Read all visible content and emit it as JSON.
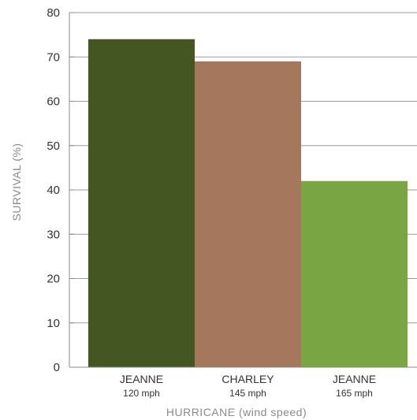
{
  "chart_data": {
    "type": "bar",
    "categories": [
      "JEANNE",
      "CHARLEY",
      "JEANNE"
    ],
    "category_sublabels": [
      "120 mph",
      "145 mph",
      "165 mph"
    ],
    "values": [
      74,
      69,
      42
    ],
    "colors": [
      "#445723",
      "#a5785e",
      "#79a642"
    ],
    "xlabel": "HURRICANE (wind speed)",
    "ylabel": "SURVIVAL (%)",
    "ylim": [
      0,
      80
    ],
    "yticks": [
      0,
      10,
      20,
      30,
      40,
      50,
      60,
      70,
      80
    ],
    "grid": true,
    "axis_color": "#8a8a8a",
    "grid_color": "#9a9a9a"
  }
}
